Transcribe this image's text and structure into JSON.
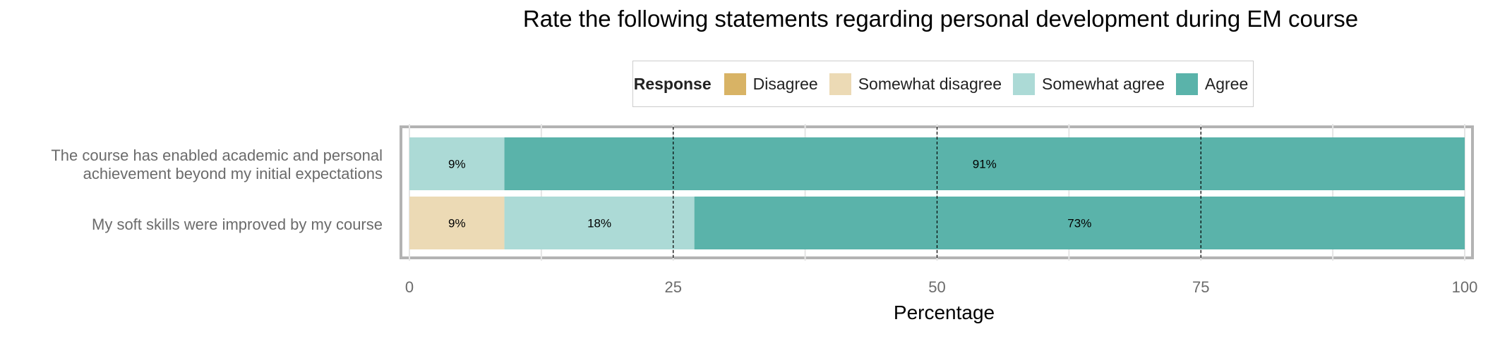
{
  "chart_data": {
    "type": "bar",
    "orientation": "horizontal",
    "stacked": true,
    "title": "Rate the following statements regarding personal development during EM course",
    "xlabel": "Percentage",
    "ylabel": "",
    "xlim": [
      0,
      100
    ],
    "x_ticks": [
      0,
      25,
      50,
      75,
      100
    ],
    "legend": {
      "title": "Response",
      "placement": "top",
      "items": [
        "Disagree",
        "Somewhat disagree",
        "Somewhat agree",
        "Agree"
      ]
    },
    "categories": [
      [
        "The course has enabled academic and personal",
        "achievement beyond my initial expectations"
      ],
      [
        "My soft skills were improved by my course"
      ]
    ],
    "series": [
      {
        "name": "Disagree",
        "color": "#d8b365",
        "values": [
          0,
          0
        ]
      },
      {
        "name": "Somewhat disagree",
        "color": "#ecdab5",
        "values": [
          0,
          9
        ]
      },
      {
        "name": "Somewhat agree",
        "color": "#acdad6",
        "values": [
          9,
          18
        ]
      },
      {
        "name": "Agree",
        "color": "#5ab3aa",
        "values": [
          91,
          73
        ]
      }
    ],
    "data_labels": [
      [
        "",
        "",
        "9%",
        "91%"
      ],
      [
        "",
        "9%",
        "18%",
        "73%"
      ]
    ],
    "grid": true,
    "reference_lines": [
      25,
      50,
      75
    ]
  }
}
